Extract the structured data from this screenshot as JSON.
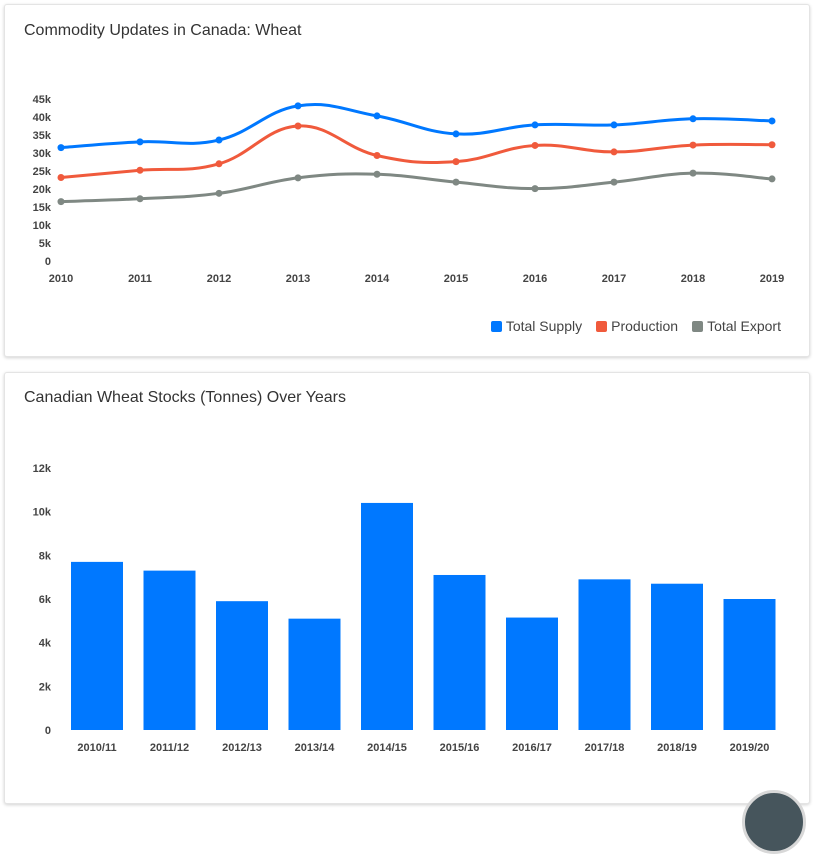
{
  "chart_data": [
    {
      "type": "line",
      "title": "Commodity Updates in Canada: Wheat",
      "categories": [
        "2010",
        "2011",
        "2012",
        "2013",
        "2014",
        "2015",
        "2016",
        "2017",
        "2018",
        "2019"
      ],
      "ylim": [
        0,
        45000
      ],
      "yticks": [
        "0",
        "5k",
        "10k",
        "15k",
        "20k",
        "25k",
        "30k",
        "35k",
        "40k",
        "45k"
      ],
      "grid": false,
      "legend": "bottom-right",
      "series": [
        {
          "name": "Total Supply",
          "color": "#0078ff",
          "values": [
            31500,
            33100,
            33600,
            43100,
            40300,
            35300,
            37800,
            37800,
            39500,
            38900
          ]
        },
        {
          "name": "Production",
          "color": "#f05a3c",
          "values": [
            23200,
            25200,
            27000,
            37500,
            29300,
            27600,
            32100,
            30300,
            32200,
            32300
          ]
        },
        {
          "name": "Total Export",
          "color": "#7f8883",
          "values": [
            16500,
            17300,
            18800,
            23100,
            24100,
            21900,
            20100,
            21900,
            24400,
            22800
          ]
        }
      ]
    },
    {
      "type": "bar",
      "title": "Canadian Wheat Stocks (Tonnes) Over Years",
      "categories": [
        "2010/11",
        "2011/12",
        "2012/13",
        "2013/14",
        "2014/15",
        "2015/16",
        "2016/17",
        "2017/18",
        "2018/19",
        "2019/20"
      ],
      "values": [
        7700,
        7300,
        5900,
        5100,
        10400,
        7100,
        5150,
        6900,
        6700,
        6000
      ],
      "ylim": [
        0,
        12000
      ],
      "yticks": [
        "0",
        "2k",
        "4k",
        "6k",
        "8k",
        "10k",
        "12k"
      ],
      "color": "#0078ff",
      "grid": false
    }
  ]
}
